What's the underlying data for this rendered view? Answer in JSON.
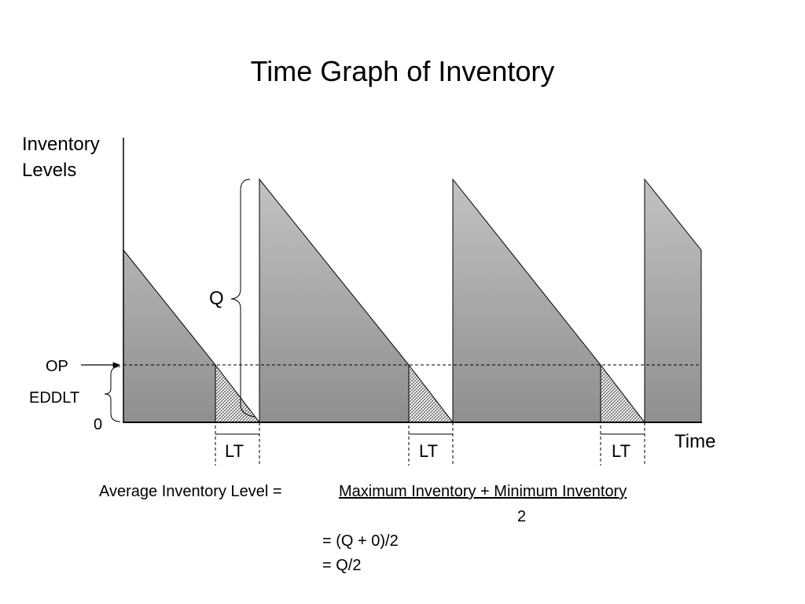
{
  "title": "Time Graph of Inventory",
  "y_axis_label": [
    "Inventory",
    "Levels"
  ],
  "x_axis_label": "Time",
  "labels": {
    "order_point": "OP",
    "eddlt": "EDDLT",
    "zero": "0",
    "order_quantity": "Q",
    "lead_time": [
      "LT",
      "LT",
      "LT"
    ]
  },
  "formula": {
    "lhs": "Average Inventory Level = ",
    "numerator": "Maximum Inventory + Minimum Inventory",
    "denominator": "2",
    "step1": "= (Q + 0)/2",
    "step2": "= Q/2"
  },
  "colors": {
    "fill_top": "#c2c2c2",
    "fill_bottom": "#8f8f8f",
    "stroke": "#000000",
    "background": "#ffffff"
  }
}
